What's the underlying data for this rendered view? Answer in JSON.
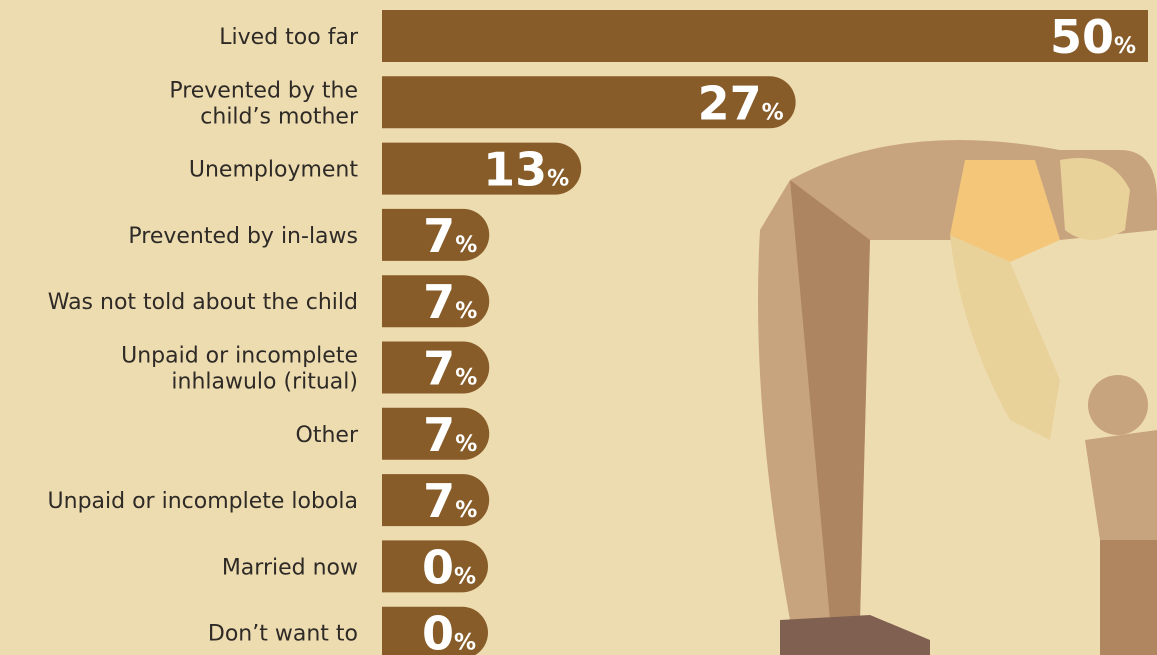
{
  "chart_data": {
    "type": "bar",
    "orientation": "horizontal",
    "categories": [
      "Lived too far",
      "Prevented by the\nchild’s mother",
      "Unemployment",
      "Prevented by in-laws",
      "Was not told about the child",
      "Unpaid or incomplete\ninhlawulo (ritual)",
      "Other",
      "Unpaid or incomplete lobola",
      "Married now",
      "Don’t want to"
    ],
    "values": [
      50,
      27,
      13,
      7,
      7,
      7,
      7,
      7,
      0,
      0
    ],
    "value_labels": [
      "50%",
      "27%",
      "13%",
      "7%",
      "7%",
      "7%",
      "7%",
      "7%",
      "0%",
      "0%"
    ],
    "color": "#875c28"
  }
}
